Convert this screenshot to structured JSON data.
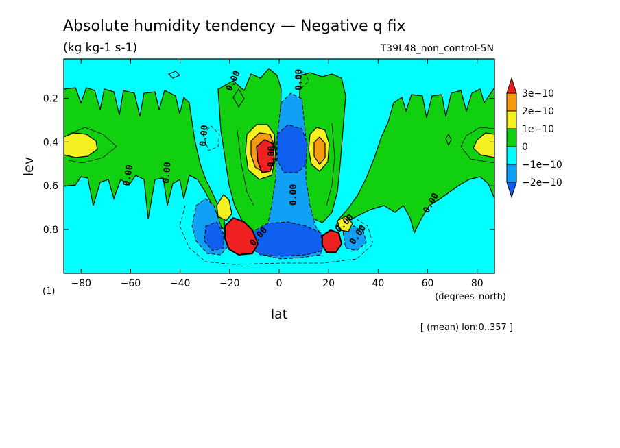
{
  "chart_data": {
    "type": "contour",
    "title": "Absolute humidity tendency — Negative q fix",
    "subtitle": "(kg kg-1 s-1)",
    "run_label": "T39L48_non_control-5N",
    "xlabel": "lat",
    "xunits": "(degrees_north)",
    "ylabel": "lev",
    "yunits": "(1)",
    "footnote": "[ (mean) lon:0..357 ]",
    "xlim": [
      -87,
      87
    ],
    "ylim": [
      1.0,
      0.02
    ],
    "xticks": [
      -80,
      -60,
      -40,
      -20,
      0,
      20,
      40,
      60,
      80
    ],
    "xtick_labels": [
      "−80",
      "−60",
      "−40",
      "−20",
      "0",
      "20",
      "40",
      "60",
      "80"
    ],
    "yticks": [
      0.2,
      0.4,
      0.6,
      0.8
    ],
    "ytick_labels": [
      "0.2",
      "0.4",
      "0.6",
      "0.8"
    ],
    "levels": [
      -2e-10,
      -1e-10,
      0,
      1e-10,
      2e-10,
      3e-10
    ],
    "colorbar": {
      "labels": [
        "3e−10",
        "2e−10",
        "1e−10",
        "0",
        "−1e−10",
        "−2e−10"
      ],
      "colors_top_to_bottom": [
        "#ee2020",
        "#f59a10",
        "#f5f020",
        "#10d010",
        "#00ffff",
        "#10a0f5",
        "#1060f0"
      ]
    },
    "contour_labels": [
      "0.00",
      "0.00",
      "0.00",
      "0.00",
      "0.00",
      "0.00",
      "0.00",
      "0.00",
      "0.00",
      "0.00",
      "0.00"
    ],
    "colors": {
      "background": "#00ffff",
      "positive_small": "#10d010",
      "positive_1e10": "#f5f020",
      "positive_2e10": "#f59a10",
      "positive_3e10": "#ee2020",
      "negative_small": "#10a0f5",
      "negative_1e10": "#1060f0"
    }
  }
}
